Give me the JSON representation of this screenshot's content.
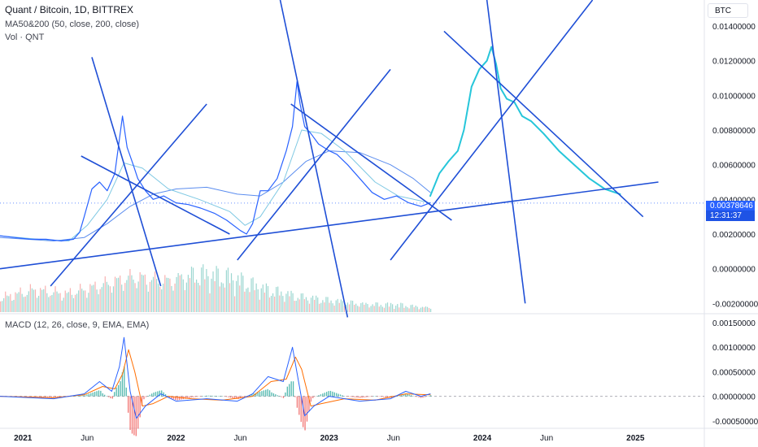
{
  "header": {
    "symbol_line": "Quant / Bitcoin, 1D, BITTREX",
    "ma_line": "MA50&200 (50, close, 200, close)",
    "vol_line": "Vol · QNT",
    "macd_line": "MACD (12, 26, close, 9, EMA, EMA)",
    "currency": "BTC"
  },
  "price_tag": {
    "value": "0.00378646",
    "countdown": "12:31:37"
  },
  "colors": {
    "price_line": "#2962ff",
    "ma50": "#7ec8e3",
    "ma200": "#5b8def",
    "drawing": "#1f4fd6",
    "projection": "#26c6da",
    "vol_up": "#26a69a",
    "vol_down": "#ef5350",
    "macd": "#2962ff",
    "signal": "#ff6d00",
    "zero_line": "#787b86",
    "axis_text": "#131722",
    "grid": "#f0f3fa"
  },
  "chart_data": [
    {
      "type": "line",
      "name": "price",
      "x_axis_ticks": [
        "2021",
        "Jun",
        "2022",
        "Jun",
        "2023",
        "Jun",
        "2024",
        "Jun",
        "2025"
      ],
      "y_ticks": [
        "0.01400000",
        "0.01200000",
        "0.01000000",
        "0.00800000",
        "0.00600000",
        "0.00400000",
        "0.00200000",
        "0.00000000",
        "-0.00200000"
      ],
      "ylim": [
        -0.0025,
        0.0155
      ],
      "xlim": [
        2020.85,
        2025.45
      ],
      "log_scale": false,
      "grid": true,
      "series": [
        {
          "role": "price",
          "x": [
            2020.85,
            2020.95,
            2021.05,
            2021.15,
            2021.25,
            2021.33,
            2021.37,
            2021.4,
            2021.45,
            2021.5,
            2021.55,
            2021.6,
            2021.65,
            2021.68,
            2021.72,
            2021.75,
            2021.8,
            2021.85,
            2021.92,
            2022.0,
            2022.08,
            2022.16,
            2022.25,
            2022.33,
            2022.42,
            2022.46,
            2022.5,
            2022.55,
            2022.6,
            2022.66,
            2022.72,
            2022.76,
            2022.79,
            2022.81,
            2022.84,
            2022.88,
            2022.93,
            2023.0,
            2023.05,
            2023.12,
            2023.2,
            2023.28,
            2023.36,
            2023.44,
            2023.52,
            2023.6,
            2023.66
          ],
          "y": [
            0.0019,
            0.0018,
            0.0017,
            0.0017,
            0.0016,
            0.0017,
            0.0021,
            0.003,
            0.0046,
            0.005,
            0.0045,
            0.0055,
            0.0088,
            0.007,
            0.006,
            0.0052,
            0.0045,
            0.004,
            0.0042,
            0.0038,
            0.0037,
            0.0035,
            0.0032,
            0.0028,
            0.0022,
            0.002,
            0.0026,
            0.0045,
            0.0045,
            0.0052,
            0.0068,
            0.0082,
            0.0108,
            0.0095,
            0.0082,
            0.0078,
            0.0072,
            0.0068,
            0.0066,
            0.006,
            0.0052,
            0.0044,
            0.004,
            0.0042,
            0.0038,
            0.0036,
            0.0038
          ]
        },
        {
          "role": "ma50",
          "x": [
            2020.85,
            2021.1,
            2021.3,
            2021.42,
            2021.55,
            2021.66,
            2021.78,
            2021.95,
            2022.15,
            2022.35,
            2022.45,
            2022.55,
            2022.7,
            2022.82,
            2022.95,
            2023.1,
            2023.3,
            2023.45,
            2023.66
          ],
          "y": [
            0.0019,
            0.0017,
            0.0016,
            0.0025,
            0.004,
            0.0061,
            0.0058,
            0.0046,
            0.004,
            0.0033,
            0.0025,
            0.003,
            0.005,
            0.008,
            0.0078,
            0.0068,
            0.005,
            0.0042,
            0.0038
          ]
        },
        {
          "role": "ma200",
          "x": [
            2020.85,
            2021.2,
            2021.4,
            2021.55,
            2021.7,
            2021.85,
            2022.0,
            2022.2,
            2022.4,
            2022.55,
            2022.7,
            2022.85,
            2023.0,
            2023.2,
            2023.4,
            2023.55,
            2023.66
          ],
          "y": [
            0.0018,
            0.0016,
            0.0018,
            0.0026,
            0.0036,
            0.0043,
            0.0046,
            0.0047,
            0.0043,
            0.0042,
            0.005,
            0.0062,
            0.0068,
            0.0067,
            0.006,
            0.0052,
            0.0044
          ]
        },
        {
          "role": "projection",
          "x": [
            2023.66,
            2023.72,
            2023.78,
            2023.84,
            2023.88,
            2023.93,
            2023.98,
            2024.03,
            2024.06,
            2024.09,
            2024.12,
            2024.16,
            2024.21,
            2024.26,
            2024.32,
            2024.4,
            2024.5,
            2024.6,
            2024.7,
            2024.8,
            2024.9
          ],
          "y": [
            0.0042,
            0.0055,
            0.0062,
            0.0068,
            0.008,
            0.0105,
            0.0115,
            0.012,
            0.0128,
            0.0118,
            0.0104,
            0.0098,
            0.0096,
            0.0088,
            0.0085,
            0.0078,
            0.0068,
            0.006,
            0.0052,
            0.0046,
            0.0043
          ]
        }
      ],
      "trend_lines": [
        {
          "x": [
            2020.85,
            2025.15
          ],
          "y": [
            0.0,
            0.005
          ]
        },
        {
          "x": [
            2021.18,
            2022.2
          ],
          "y": [
            -0.001,
            0.0095
          ]
        },
        {
          "x": [
            2021.45,
            2021.9
          ],
          "y": [
            0.0122,
            -0.001
          ]
        },
        {
          "x": [
            2021.38,
            2022.35
          ],
          "y": [
            0.0065,
            0.002
          ]
        },
        {
          "x": [
            2022.4,
            2023.4
          ],
          "y": [
            0.0005,
            0.0115
          ]
        },
        {
          "x": [
            2022.68,
            2023.12
          ],
          "y": [
            0.0155,
            -0.0028
          ]
        },
        {
          "x": [
            2022.75,
            2023.8
          ],
          "y": [
            0.0095,
            0.0028
          ]
        },
        {
          "x": [
            2023.4,
            2024.72
          ],
          "y": [
            0.0005,
            0.0155
          ]
        },
        {
          "x": [
            2023.75,
            2025.05
          ],
          "y": [
            0.0137,
            0.003
          ]
        },
        {
          "x": [
            2024.02,
            2024.28
          ],
          "y": [
            0.0162,
            -0.002
          ]
        }
      ]
    },
    {
      "type": "bar",
      "name": "volume",
      "note_free": true,
      "categories_range": [
        2020.85,
        2023.66
      ],
      "values_up": [
        0.3,
        0.5,
        0.4,
        0.6,
        0.8,
        0.7,
        1.0,
        0.9,
        0.6,
        0.4,
        0.3,
        0.2,
        0.2,
        0.1
      ],
      "values_down": [
        0.4,
        0.6,
        0.5,
        0.7,
        0.9,
        0.8,
        0.7,
        0.6,
        0.4,
        0.3,
        0.2,
        0.15,
        0.1,
        0.1
      ]
    },
    {
      "type": "line",
      "name": "macd",
      "y_ticks": [
        "0.00150000",
        "0.00100000",
        "0.00050000",
        "0.00000000",
        "-0.00050000"
      ],
      "ylim": [
        -0.00062,
        0.00165
      ],
      "xlim": [
        2020.85,
        2025.45
      ],
      "series": [
        {
          "role": "macd",
          "x": [
            2020.85,
            2021.2,
            2021.4,
            2021.5,
            2021.58,
            2021.63,
            2021.66,
            2021.7,
            2021.74,
            2021.8,
            2021.9,
            2022.0,
            2022.2,
            2022.4,
            2022.5,
            2022.6,
            2022.7,
            2022.76,
            2022.8,
            2022.84,
            2022.9,
            2023.0,
            2023.2,
            2023.4,
            2023.5,
            2023.6,
            2023.66
          ],
          "y": [
            0.0,
            -5e-05,
            5e-05,
            0.0003,
            0.0001,
            0.0006,
            0.0012,
            0.0001,
            -0.00045,
            -0.0002,
            5e-05,
            -0.0001,
            -5e-05,
            -0.0001,
            5e-05,
            0.0004,
            0.0003,
            0.001,
            0.0003,
            -0.0004,
            -0.0002,
            0.0,
            -0.0001,
            -5e-05,
            0.0001,
            0.0,
            5e-05
          ]
        },
        {
          "role": "signal",
          "x": [
            2020.85,
            2021.2,
            2021.4,
            2021.52,
            2021.6,
            2021.65,
            2021.69,
            2021.73,
            2021.78,
            2021.85,
            2021.95,
            2022.1,
            2022.3,
            2022.5,
            2022.62,
            2022.72,
            2022.78,
            2022.82,
            2022.88,
            2022.95,
            2023.1,
            2023.3,
            2023.5,
            2023.66
          ],
          "y": [
            0.0,
            -3e-05,
            3e-05,
            0.0002,
            0.00015,
            0.00045,
            0.00095,
            0.0005,
            -0.0002,
            -0.00015,
            0.0,
            -5e-05,
            -8e-05,
            0.0,
            0.0003,
            0.00035,
            0.0008,
            0.00055,
            -0.0002,
            -0.00015,
            -5e-05,
            -8e-05,
            5e-05,
            3e-05
          ]
        }
      ]
    }
  ]
}
